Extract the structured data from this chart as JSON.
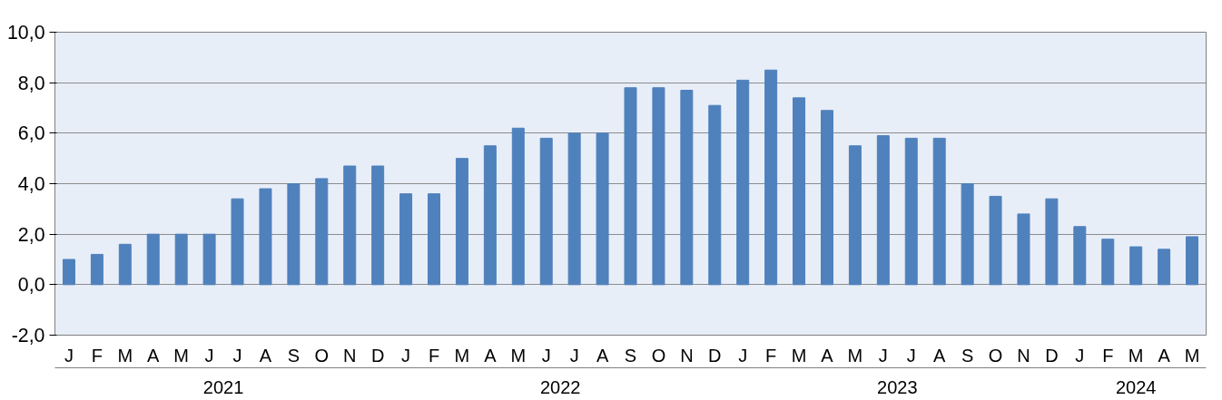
{
  "chart_data": {
    "type": "bar",
    "categories": [
      "J",
      "F",
      "M",
      "A",
      "M",
      "J",
      "J",
      "A",
      "S",
      "O",
      "N",
      "D",
      "J",
      "F",
      "M",
      "A",
      "M",
      "J",
      "J",
      "A",
      "S",
      "O",
      "N",
      "D",
      "J",
      "F",
      "M",
      "A",
      "M",
      "J",
      "J",
      "A",
      "S",
      "O",
      "N",
      "D",
      "J",
      "F",
      "M",
      "A",
      "M"
    ],
    "values": [
      1.0,
      1.2,
      1.6,
      2.0,
      2.0,
      2.0,
      3.4,
      3.8,
      4.0,
      4.2,
      4.7,
      4.7,
      3.6,
      3.6,
      5.0,
      5.5,
      6.2,
      5.8,
      6.0,
      6.0,
      7.8,
      7.8,
      7.7,
      7.1,
      8.1,
      8.5,
      7.4,
      6.9,
      5.5,
      5.9,
      5.8,
      5.8,
      4.0,
      3.5,
      2.8,
      3.4,
      2.3,
      1.8,
      1.5,
      1.4,
      1.9
    ],
    "color": "#4f81bd",
    "annotations": [
      "2021",
      "2022",
      "2023",
      "2024"
    ],
    "ylim": [
      -2,
      10
    ],
    "yticks": [
      {
        "value": -2,
        "label": "-2,0"
      },
      {
        "value": 0,
        "label": "0,0"
      },
      {
        "value": 2,
        "label": "2,0"
      },
      {
        "value": 4,
        "label": "4,0"
      },
      {
        "value": 6,
        "label": "6,0"
      },
      {
        "value": 8,
        "label": "8,0"
      },
      {
        "value": 10,
        "label": "10,0"
      }
    ],
    "grid": "y"
  }
}
